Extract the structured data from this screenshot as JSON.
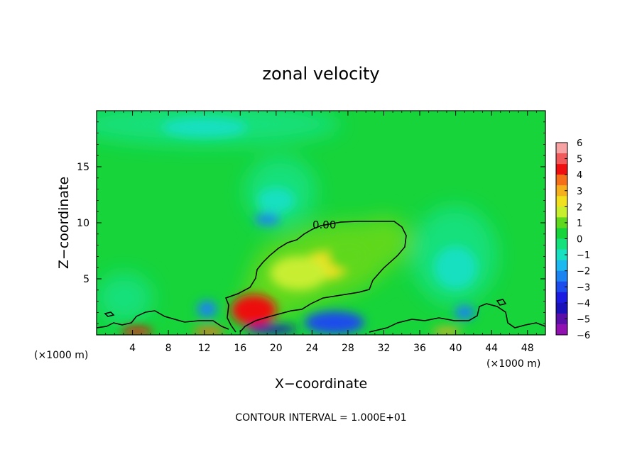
{
  "chart_data": {
    "type": "heatmap",
    "title": "zonal velocity",
    "xlabel": "X−coordinate",
    "ylabel": "Z−coordinate",
    "x_unit_left": "(×1000 m)",
    "x_unit_right": "(×1000 m)",
    "xlim": [
      0,
      50
    ],
    "ylim": [
      0,
      20
    ],
    "x_ticks": [
      4,
      8,
      12,
      16,
      20,
      24,
      28,
      32,
      36,
      40,
      44,
      48
    ],
    "x_tick_labels": [
      "4",
      "8",
      "12",
      "16",
      "20",
      "24",
      "28",
      "32",
      "36",
      "40",
      "44",
      "48"
    ],
    "y_ticks": [
      5,
      10,
      15
    ],
    "y_tick_labels": [
      "5",
      "10",
      "15"
    ],
    "contour_label": "0.00",
    "footer": "CONTOUR INTERVAL = 1.000E+01",
    "colorbar": {
      "labels": [
        "6",
        "5",
        "4",
        "3",
        "2",
        "1",
        "0",
        "−1",
        "−2",
        "−3",
        "−4",
        "−5",
        "−6"
      ],
      "colors": [
        "#f7a3a3",
        "#f05a5a",
        "#ee1010",
        "#f5701a",
        "#f5b020",
        "#f0e020",
        "#c8ee30",
        "#5fd81f",
        "#16d43a",
        "#14e07c",
        "#18e0c0",
        "#1eb8f0",
        "#1c84f0",
        "#1c4cec",
        "#1c1ce0",
        "#1a12b8",
        "#5a10a8",
        "#9010b0"
      ]
    },
    "field_features": [
      {
        "x": 17.5,
        "z": 2.2,
        "value": 4.2
      },
      {
        "x": 25.5,
        "z": 6.2,
        "value": 2.5
      },
      {
        "x": 22.5,
        "z": 5.5,
        "value": 1.6
      },
      {
        "x": 28.0,
        "z": 7.0,
        "value": 1.2
      },
      {
        "x": 26.5,
        "z": 1.1,
        "value": -3.0
      },
      {
        "x": 19.5,
        "z": 0.5,
        "value": -4.5
      },
      {
        "x": 12.3,
        "z": 2.3,
        "value": -2.5
      },
      {
        "x": 19.0,
        "z": 10.3,
        "value": -2.2
      },
      {
        "x": 20.0,
        "z": 12.0,
        "value": -1.3
      },
      {
        "x": 12.0,
        "z": 18.5,
        "value": -1.3
      },
      {
        "x": 40.0,
        "z": 6.0,
        "value": -1.3
      },
      {
        "x": 41.0,
        "z": 2.0,
        "value": -2.0
      },
      {
        "x": 4.5,
        "z": 0.3,
        "value": 4.2
      },
      {
        "x": 12.5,
        "z": 0.3,
        "value": 4.0
      },
      {
        "x": 39.0,
        "z": 0.3,
        "value": 3.0
      }
    ]
  }
}
